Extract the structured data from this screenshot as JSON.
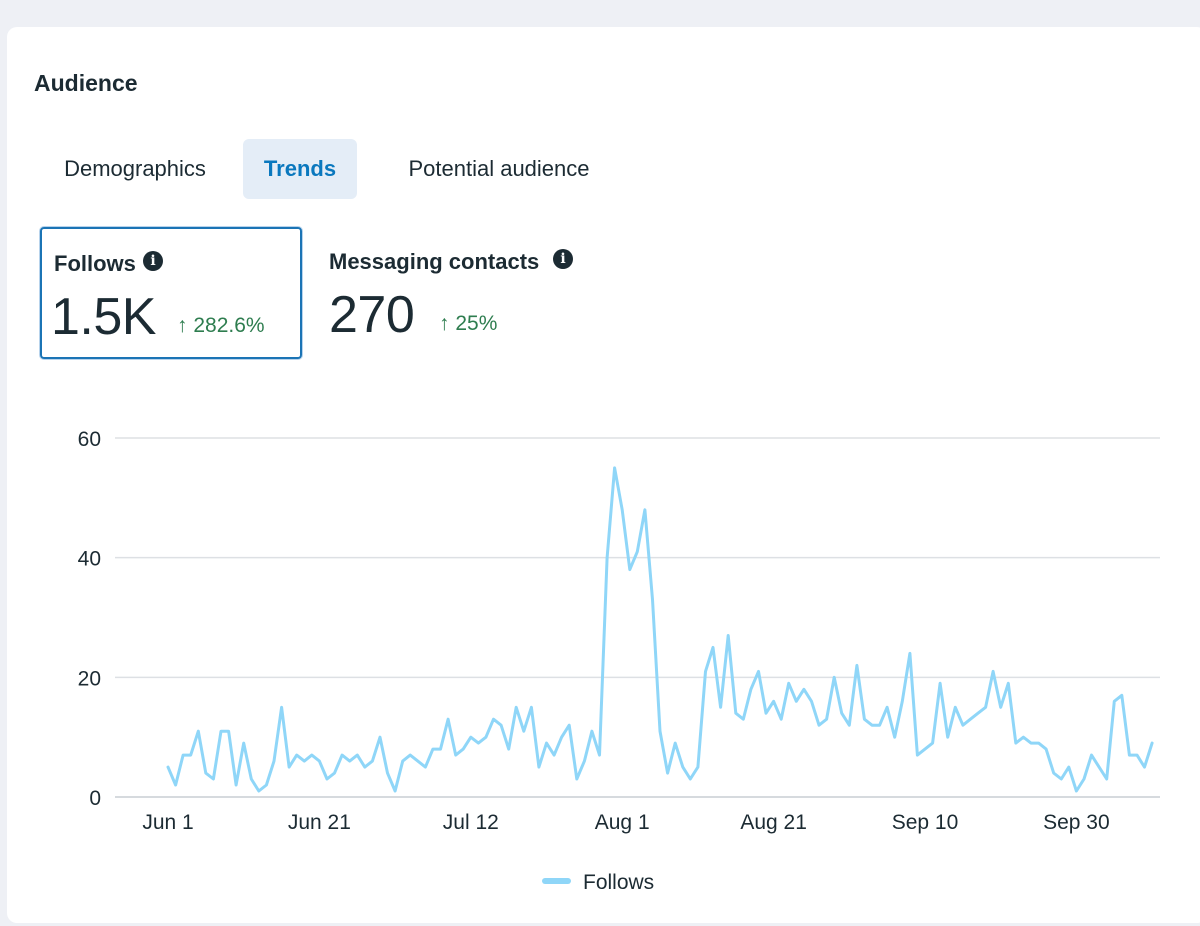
{
  "section": {
    "title": "Audience"
  },
  "tabs": [
    {
      "label": "Demographics",
      "active": false
    },
    {
      "label": "Trends",
      "active": true
    },
    {
      "label": "Potential audience",
      "active": false
    }
  ],
  "metrics": [
    {
      "label": "Follows",
      "value": "1.5K",
      "change": "↑ 282.6%",
      "selected": true
    },
    {
      "label": "Messaging contacts",
      "value": "270",
      "change": "↑ 25%",
      "selected": false
    }
  ],
  "info_icon": "info-icon",
  "colors": {
    "accent": "#0a78be",
    "line": "#8fd6f8",
    "positive": "#2e7d4f"
  },
  "chart_data": {
    "type": "line",
    "x_tick_labels": [
      "Jun 1",
      "Jun 21",
      "Jul 12",
      "Aug 1",
      "Aug 21",
      "Sep 10",
      "Sep 30"
    ],
    "y_tick_labels": [
      "0",
      "20",
      "40",
      "60"
    ],
    "ylim": [
      0,
      60
    ],
    "grid": true,
    "legend_position": "bottom-center",
    "series": [
      {
        "name": "Follows",
        "values": [
          5,
          2,
          7,
          7,
          11,
          4,
          3,
          11,
          11,
          2,
          9,
          3,
          1,
          2,
          6,
          15,
          5,
          7,
          6,
          7,
          6,
          3,
          4,
          7,
          6,
          7,
          5,
          6,
          10,
          4,
          1,
          6,
          7,
          6,
          5,
          8,
          8,
          13,
          7,
          8,
          10,
          9,
          10,
          13,
          12,
          8,
          15,
          11,
          15,
          5,
          9,
          7,
          10,
          12,
          3,
          6,
          11,
          7,
          40,
          55,
          48,
          38,
          41,
          48,
          33,
          11,
          4,
          9,
          5,
          3,
          5,
          21,
          25,
          15,
          27,
          14,
          13,
          18,
          21,
          14,
          16,
          13,
          19,
          16,
          18,
          16,
          12,
          13,
          20,
          14,
          12,
          22,
          13,
          12,
          12,
          15,
          10,
          16,
          24,
          7,
          8,
          9,
          19,
          10,
          15,
          12,
          13,
          14,
          15,
          21,
          15,
          19,
          9,
          10,
          9,
          9,
          8,
          4,
          3,
          5,
          1,
          3,
          7,
          5,
          3,
          16,
          17,
          7,
          7,
          5,
          9
        ]
      }
    ]
  }
}
